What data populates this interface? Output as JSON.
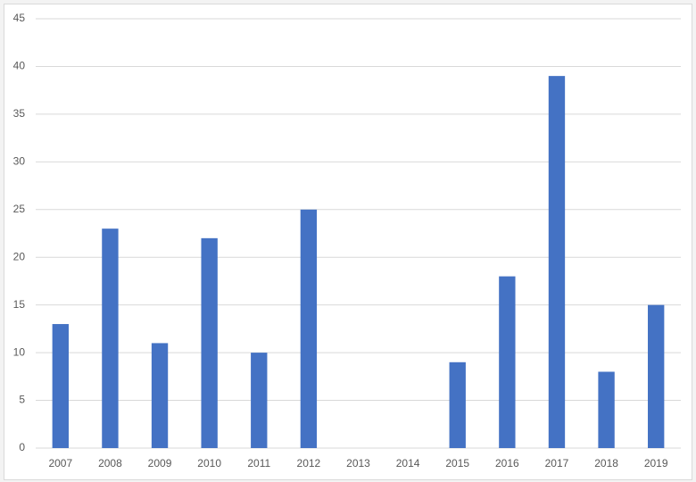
{
  "chart_data": {
    "type": "bar",
    "categories": [
      "2007",
      "2008",
      "2009",
      "2010",
      "2011",
      "2012",
      "2013",
      "2014",
      "2015",
      "2016",
      "2017",
      "2018",
      "2019"
    ],
    "values": [
      13,
      23,
      11,
      22,
      10,
      25,
      0,
      0,
      9,
      18,
      39,
      8,
      15
    ],
    "color": "#4472c4",
    "ylim": [
      0,
      45
    ],
    "yticks": [
      0,
      5,
      10,
      15,
      20,
      25,
      30,
      35,
      40,
      45
    ],
    "grid": true
  }
}
